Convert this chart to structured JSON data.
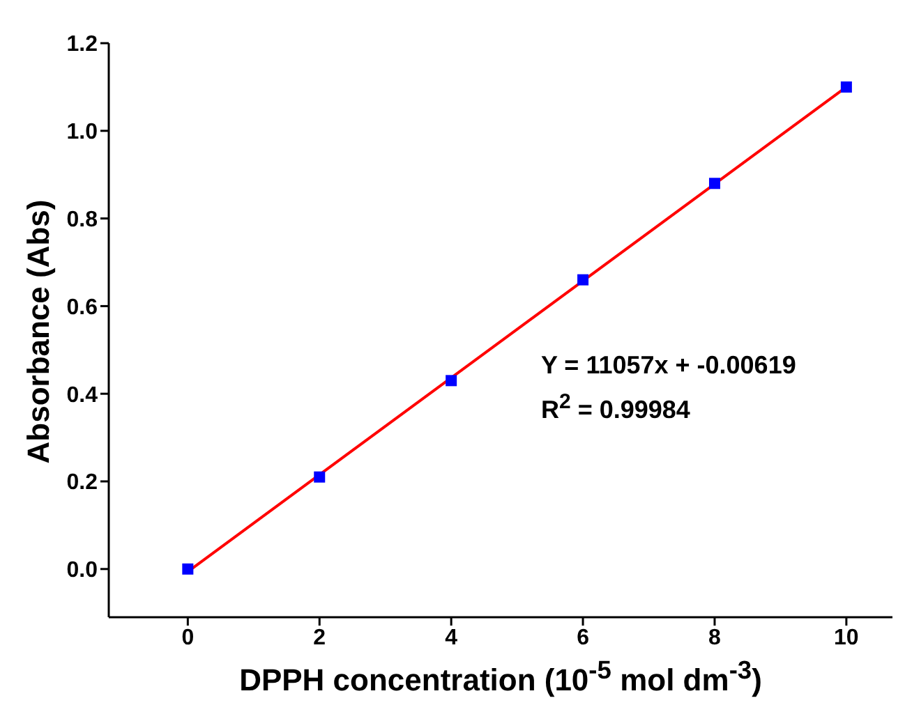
{
  "chart_data": {
    "type": "scatter",
    "xlabel": "DPPH concentration (10$^{-5}$ mol dm$^{-3}$)",
    "ylabel": "Absorbance (Abs)",
    "xlim": [
      -1.2,
      10.7
    ],
    "xticks": [
      0,
      2,
      4,
      6,
      8,
      10
    ],
    "ylim": [
      -0.11,
      1.2
    ],
    "yticks": [
      {
        "value": 0,
        "label": "0.0"
      },
      {
        "value": 0.2,
        "label": "0.2"
      },
      {
        "value": 0.4,
        "label": "0.4"
      },
      {
        "value": 0.6,
        "label": "0.6"
      },
      {
        "value": 0.8,
        "label": "0.8"
      },
      {
        "value": 1,
        "label": "1.0"
      },
      {
        "value": 1.2,
        "label": "1.2"
      }
    ],
    "grid": false,
    "legend": false,
    "series": [
      {
        "type": "line",
        "color": "#ff0000",
        "x": [
          0,
          10
        ],
        "values": [
          -0.006,
          1.1
        ],
        "marker": "none"
      },
      {
        "type": "scatter",
        "color": "#0000ff",
        "x": [
          0,
          2,
          4,
          6,
          8,
          10
        ],
        "values": [
          0,
          0.21,
          0.43,
          0.66,
          0.88,
          1.1
        ],
        "marker": "square"
      }
    ],
    "annotations": [
      "Y = 11057x + -0.00619",
      "R$^{2}$ = 0.99984"
    ]
  }
}
